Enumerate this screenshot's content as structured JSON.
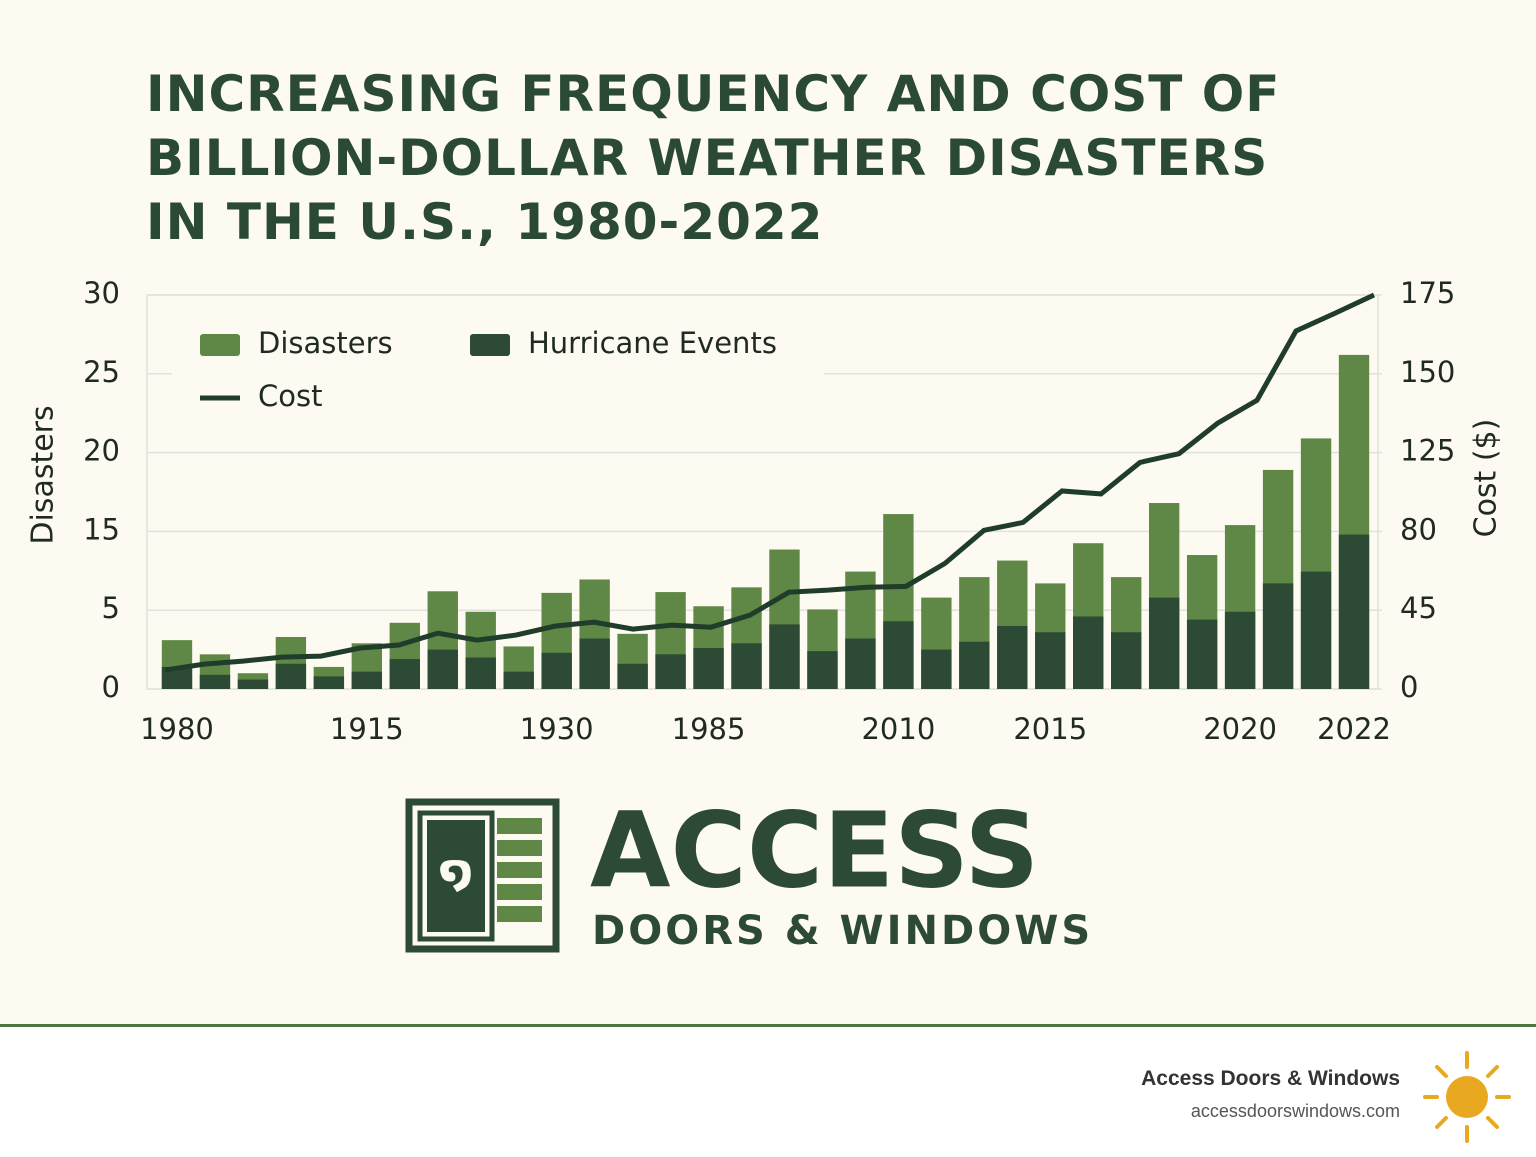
{
  "chart_data": {
    "type": "bar",
    "title": "INCREASING FREQUENCY AND COST OF BILLION-DOLLAR WEATHER DISASTERS IN THE U.S., 1980-2022",
    "ylabel": "Disasters",
    "y2label": "Cost ($)",
    "categories": [
      "1980",
      null,
      null,
      null,
      null,
      "1915",
      null,
      null,
      null,
      null,
      "1930",
      null,
      null,
      null,
      "1985",
      null,
      null,
      null,
      null,
      "2010",
      null,
      null,
      null,
      "2015",
      null,
      null,
      null,
      null,
      "2020",
      null,
      null,
      "2022"
    ],
    "ylim": [
      0,
      30
    ],
    "yticks": [
      0,
      5,
      15,
      20,
      25,
      30
    ],
    "y2lim": [
      0,
      175
    ],
    "y2ticks": [
      0,
      45,
      80,
      125,
      150,
      175
    ],
    "grid": true,
    "legend": "top-left",
    "series": [
      {
        "name": "Disasters",
        "type": "bar",
        "color": "#5f8746",
        "values": [
          3.1,
          2.2,
          1.0,
          3.3,
          1.4,
          2.9,
          4.2,
          7.4,
          4.9,
          2.7,
          7.2,
          8.9,
          3.5,
          7.3,
          5.5,
          7.9,
          12.7,
          5.1,
          9.9,
          16.1,
          6.6,
          9.2,
          11.3,
          8.4,
          13.5,
          9.2,
          16.8,
          12.0,
          15.4,
          18.9,
          20.9,
          26.2
        ]
      },
      {
        "name": "Hurricane Events",
        "type": "bar",
        "color": "#2c4a34",
        "values": [
          1.4,
          0.9,
          0.6,
          1.6,
          0.8,
          1.1,
          1.9,
          2.5,
          2.0,
          1.1,
          2.3,
          3.2,
          1.6,
          2.2,
          2.6,
          2.9,
          4.1,
          2.4,
          3.2,
          4.3,
          2.5,
          3.0,
          4.0,
          3.6,
          4.6,
          3.6,
          6.6,
          4.4,
          4.9,
          8.4,
          9.9,
          14.6
        ]
      },
      {
        "name": "Cost",
        "type": "line",
        "axis": "y2",
        "color": "#1f3d2a",
        "values": [
          10.8,
          14.2,
          15.9,
          18.2,
          18.8,
          23.4,
          25.1,
          31.9,
          27.9,
          30.8,
          35.9,
          38.2,
          34.2,
          36.5,
          35.3,
          42.2,
          53.0,
          53.9,
          55.2,
          55.6,
          65.8,
          80.6,
          85.1,
          103.1,
          101.4,
          119.4,
          124.4,
          134.4,
          141.6,
          163.6,
          169.2,
          175
        ]
      }
    ]
  },
  "logo": {
    "name": "ACCESS",
    "tagline": "DOORS & WINDOWS"
  },
  "footer": {
    "company": "Access Doors & Windows",
    "url": "accessdoorswindows.com"
  }
}
